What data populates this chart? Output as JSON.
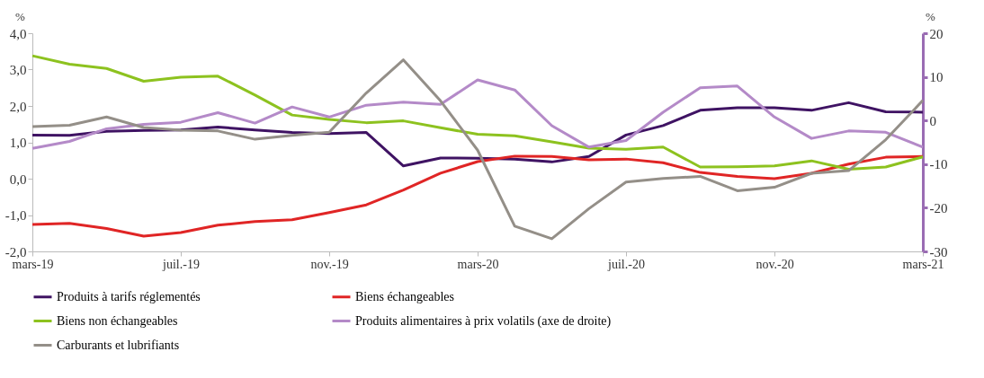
{
  "chart_data": {
    "type": "line",
    "categories": [
      "mars-19",
      null,
      null,
      null,
      "juil.-19",
      null,
      null,
      null,
      "nov.-19",
      null,
      null,
      null,
      "mars-20",
      null,
      null,
      null,
      "juil.-20",
      null,
      null,
      null,
      "nov.-20",
      null,
      null,
      null,
      "mars-21"
    ],
    "ylabel": "%",
    "y2label": "%",
    "ylim": [
      -2.0,
      4.0
    ],
    "yticks": [
      {
        "value": -2,
        "label": "-2,0"
      },
      {
        "value": -1,
        "label": "-1,0"
      },
      {
        "value": 0,
        "label": "0,0"
      },
      {
        "value": 1,
        "label": "1,0"
      },
      {
        "value": 2,
        "label": "2,0"
      },
      {
        "value": 3,
        "label": "3,0"
      },
      {
        "value": 4,
        "label": "4,0"
      }
    ],
    "y2lim": [
      -30,
      20
    ],
    "y2ticks": [
      -30,
      -20,
      -10,
      0,
      10,
      20
    ],
    "grid": false,
    "legend": "bottom",
    "marker": "none",
    "line_style": "solid",
    "series": [
      {
        "name": "Produits à tarifs réglementés",
        "color": "#3f1363",
        "values": [
          1.2,
          1.19,
          1.3,
          1.33,
          1.34,
          1.42,
          1.34,
          1.27,
          1.24,
          1.27,
          0.35,
          0.57,
          0.56,
          0.54,
          0.46,
          0.61,
          1.2,
          1.46,
          1.88,
          1.95,
          1.95,
          1.88,
          2.09,
          1.84,
          1.83
        ]
      },
      {
        "name": "Biens échangeables",
        "color": "#e02525",
        "values": [
          -1.26,
          -1.23,
          -1.37,
          -1.58,
          -1.48,
          -1.28,
          -1.18,
          -1.13,
          -0.93,
          -0.72,
          -0.31,
          0.15,
          0.47,
          0.62,
          0.61,
          0.52,
          0.54,
          0.44,
          0.17,
          0.06,
          0.0,
          0.15,
          0.4,
          0.59,
          0.61
        ]
      },
      {
        "name": "Biens non échangeables",
        "color": "#8dc21f",
        "values": [
          3.38,
          3.15,
          3.03,
          2.68,
          2.79,
          2.82,
          2.3,
          1.75,
          1.63,
          1.54,
          1.59,
          1.4,
          1.22,
          1.18,
          1.01,
          0.84,
          0.81,
          0.87,
          0.32,
          0.33,
          0.35,
          0.49,
          0.26,
          0.32,
          0.6
        ]
      },
      {
        "name": "Produits alimentaires à prix volatils (axe de droite)",
        "color": "#b48ac8",
        "axis": "y2",
        "values": [
          -6.4,
          -4.8,
          -1.9,
          -0.9,
          -0.4,
          1.8,
          -0.6,
          3.1,
          0.8,
          3.5,
          4.2,
          3.7,
          9.3,
          7.0,
          -1.2,
          -6.1,
          -4.6,
          1.9,
          7.5,
          7.9,
          0.8,
          -4.1,
          -2.4,
          -2.7,
          -6.1
        ]
      },
      {
        "name": "Carburants et lubrifiants",
        "color": "#948f88",
        "axis": "y2",
        "values": [
          -1.4,
          -1.1,
          0.8,
          -1.6,
          -2.2,
          -2.4,
          -4.3,
          -3.4,
          -2.7,
          6.3,
          13.9,
          4.5,
          -6.8,
          -24.2,
          -27.1,
          -20.2,
          -14.1,
          -13.3,
          -12.8,
          -16.1,
          -15.3,
          -12.1,
          -11.5,
          -4.4,
          4.6
        ]
      }
    ]
  }
}
